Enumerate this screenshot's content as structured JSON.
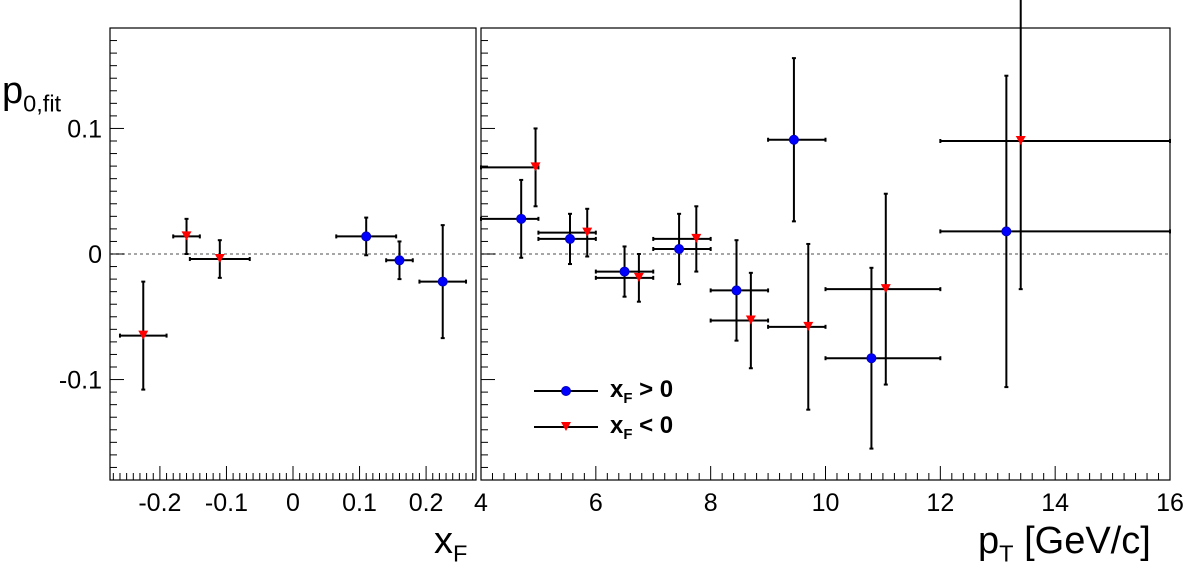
{
  "chart_data": [
    {
      "type": "scatter",
      "panel": "left",
      "xlabel": "x_F",
      "ylabel": "p_0,fit",
      "xlim": [
        -0.275,
        0.275
      ],
      "ylim": [
        -0.18,
        0.18
      ],
      "xticks": [
        "-0.2",
        "-0.1",
        "0",
        "0.1",
        "0.2"
      ],
      "yticks": [
        "0.1",
        "0",
        "-0.1"
      ],
      "reference_line": 0,
      "series": [
        {
          "name": "x_F > 0",
          "marker": "circle",
          "color": "#0000ff",
          "points": [
            {
              "x": 0.11,
              "xerr": 0.045,
              "y": 0.014,
              "yerr": 0.015
            },
            {
              "x": 0.16,
              "xerr": 0.02,
              "y": -0.005,
              "yerr": 0.015
            },
            {
              "x": 0.225,
              "xerr": 0.035,
              "y": -0.022,
              "yerr": 0.045
            }
          ]
        },
        {
          "name": "x_F < 0",
          "marker": "triangle-down",
          "color": "#ff0000",
          "points": [
            {
              "x": -0.225,
              "xerr": 0.035,
              "y": -0.065,
              "yerr": 0.043
            },
            {
              "x": -0.16,
              "xerr": 0.02,
              "y": 0.014,
              "yerr": 0.014
            },
            {
              "x": -0.11,
              "xerr": 0.045,
              "y": -0.004,
              "yerr": 0.015
            }
          ]
        }
      ]
    },
    {
      "type": "scatter",
      "panel": "right",
      "xlabel": "p_T [GeV/c]",
      "xlim": [
        4,
        16
      ],
      "ylim": [
        -0.18,
        0.18
      ],
      "xticks": [
        "4",
        "6",
        "8",
        "10",
        "12",
        "14",
        "16"
      ],
      "reference_line": 0,
      "series": [
        {
          "name": "x_F > 0",
          "marker": "circle",
          "color": "#0000ff",
          "points": [
            {
              "x": 4.7,
              "xlo": 4,
              "xhi": 5,
              "y": 0.028,
              "yerr": 0.031
            },
            {
              "x": 5.55,
              "xlo": 5,
              "xhi": 6,
              "y": 0.012,
              "yerr": 0.02
            },
            {
              "x": 6.5,
              "xlo": 6,
              "xhi": 7,
              "y": -0.014,
              "yerr": 0.02
            },
            {
              "x": 7.45,
              "xlo": 7,
              "xhi": 8,
              "y": 0.004,
              "yerr": 0.028
            },
            {
              "x": 8.45,
              "xlo": 8,
              "xhi": 9,
              "y": -0.029,
              "yerr": 0.04
            },
            {
              "x": 9.45,
              "xlo": 9,
              "xhi": 10,
              "y": 0.091,
              "yerr": 0.065
            },
            {
              "x": 10.8,
              "xlo": 10,
              "xhi": 12,
              "y": -0.083,
              "yerr": 0.072
            },
            {
              "x": 13.15,
              "xlo": 12,
              "xhi": 16,
              "y": 0.018,
              "yerr": 0.124
            }
          ]
        },
        {
          "name": "x_F < 0",
          "marker": "triangle-down",
          "color": "#ff0000",
          "points": [
            {
              "x": 4.95,
              "xlo": 4,
              "xhi": 5,
              "y": 0.069,
              "yerr": 0.031
            },
            {
              "x": 5.85,
              "xlo": 5,
              "xhi": 6,
              "y": 0.017,
              "yerr": 0.019
            },
            {
              "x": 6.75,
              "xlo": 6,
              "xhi": 7,
              "y": -0.019,
              "yerr": 0.019
            },
            {
              "x": 7.75,
              "xlo": 7,
              "xhi": 8,
              "y": 0.012,
              "yerr": 0.026
            },
            {
              "x": 8.7,
              "xlo": 8,
              "xhi": 9,
              "y": -0.053,
              "yerr": 0.038
            },
            {
              "x": 9.7,
              "xlo": 9,
              "xhi": 10,
              "y": -0.058,
              "yerr": 0.066
            },
            {
              "x": 11.05,
              "xlo": 10,
              "xhi": 12,
              "y": -0.028,
              "yerr": 0.076
            },
            {
              "x": 13.4,
              "xlo": 12,
              "xhi": 16,
              "y": 0.09,
              "yerr": 0.118
            }
          ]
        }
      ]
    }
  ],
  "axis_titles": {
    "y_main": "p",
    "y_sub": "0,fit",
    "x_left_main": "x",
    "x_left_sub": "F",
    "x_right_main": "p",
    "x_right_sub": "T",
    "x_right_unit": " [GeV/c]"
  },
  "legend": {
    "placement": "lower-left of right panel",
    "items": [
      {
        "main": "x",
        "sub": "F",
        "rest": " > 0",
        "marker": "circle",
        "color": "#0000ff"
      },
      {
        "main": "x",
        "sub": "F",
        "rest": " < 0",
        "marker": "triangle-down",
        "color": "#ff0000"
      }
    ]
  }
}
